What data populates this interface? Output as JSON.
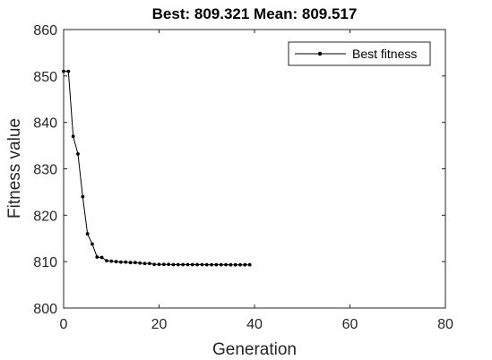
{
  "chart_data": {
    "type": "line",
    "title": "Best: 809.321 Mean: 809.517",
    "xlabel": "Generation",
    "ylabel": "Fitness value",
    "xlim": [
      0,
      80
    ],
    "ylim": [
      800,
      860
    ],
    "xticks": [
      0,
      20,
      40,
      60,
      80
    ],
    "yticks": [
      800,
      810,
      820,
      830,
      840,
      850,
      860
    ],
    "xtick_labels": [
      "0",
      "20",
      "40",
      "60",
      "80"
    ],
    "ytick_labels": [
      "800",
      "810",
      "820",
      "830",
      "840",
      "850",
      "860"
    ],
    "grid": false,
    "legend_position": "top-right",
    "series": [
      {
        "name": "Best fitness",
        "color": "#000000",
        "marker": "dot",
        "x": [
          0,
          1,
          2,
          3,
          4,
          5,
          6,
          7,
          8,
          9,
          10,
          11,
          12,
          13,
          14,
          15,
          16,
          17,
          18,
          19,
          20,
          21,
          22,
          23,
          24,
          25,
          26,
          27,
          28,
          29,
          30,
          31,
          32,
          33,
          34,
          35,
          36,
          37,
          38,
          39
        ],
        "y": [
          851.0,
          851.0,
          837.0,
          833.2,
          824.0,
          816.0,
          813.8,
          811.0,
          810.9,
          810.2,
          810.1,
          810.0,
          809.9,
          809.9,
          809.8,
          809.8,
          809.7,
          809.6,
          809.6,
          809.4,
          809.4,
          809.4,
          809.4,
          809.35,
          809.35,
          809.35,
          809.35,
          809.35,
          809.35,
          809.35,
          809.33,
          809.33,
          809.33,
          809.33,
          809.33,
          809.32,
          809.32,
          809.32,
          809.32,
          809.321
        ]
      }
    ]
  }
}
